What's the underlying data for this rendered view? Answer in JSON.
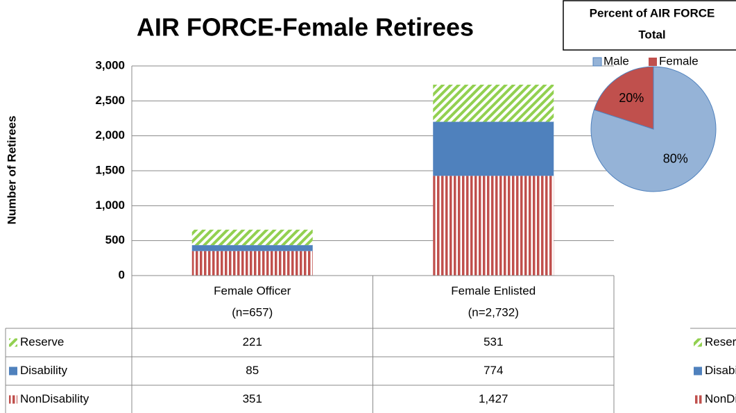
{
  "chart_data": {
    "type": "bar",
    "stacked": true,
    "title": "AIR FORCE-Female Retirees",
    "ylabel": "Number of Retirees",
    "categories": [
      "Female Officer",
      "Female Enlisted"
    ],
    "category_notes": [
      "(n=657)",
      "(n=2,732)"
    ],
    "series": [
      {
        "name": "NonDisability",
        "color": "#c0504d",
        "pattern": "vertical",
        "values": [
          351,
          1427
        ],
        "value_labels": [
          "351",
          "1,427"
        ]
      },
      {
        "name": "Disability",
        "color": "#4f81bd",
        "pattern": "solid",
        "values": [
          85,
          774
        ],
        "value_labels": [
          "85",
          "774"
        ]
      },
      {
        "name": "Reserve",
        "color": "#92d050",
        "pattern": "diagonal",
        "values": [
          221,
          531
        ],
        "value_labels": [
          "221",
          "531"
        ]
      }
    ],
    "ylim": [
      0,
      3000
    ],
    "yticks": [
      0,
      500,
      {
        "value": 1000,
        "label": "1,000"
      },
      {
        "value": 1500,
        "label": "1,500"
      },
      {
        "value": 2000,
        "label": "2,000"
      },
      {
        "value": 2500,
        "label": "2,500"
      },
      {
        "value": 3000,
        "label": "3,000"
      }
    ],
    "grid": true,
    "inset": {
      "type": "pie",
      "title": [
        "Percent of  AIR FORCE",
        "Total"
      ],
      "categories": [
        "Male",
        "Female"
      ],
      "colors": [
        "#95b3d7",
        "#c0504d"
      ],
      "values": [
        80,
        20
      ],
      "value_labels": [
        "80%",
        "20%"
      ]
    }
  }
}
